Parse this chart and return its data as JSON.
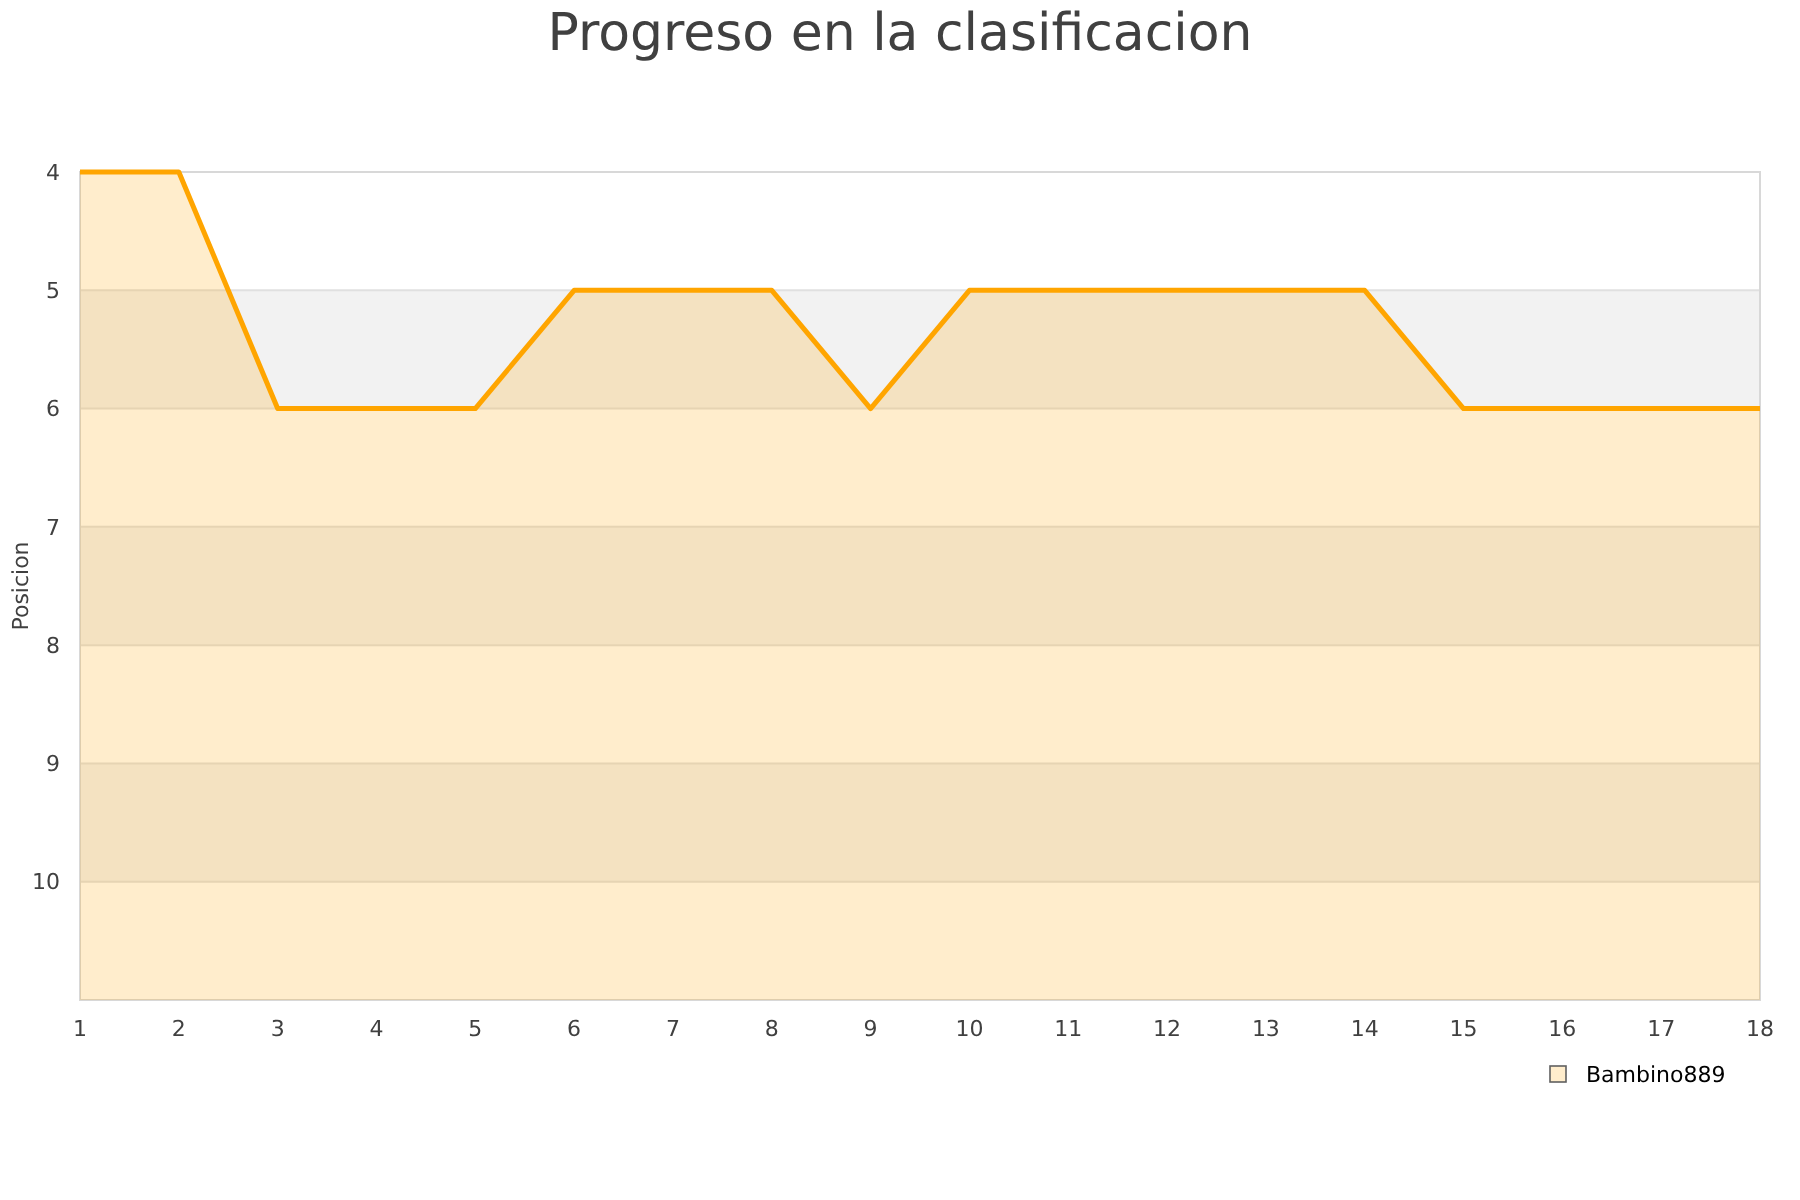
{
  "chart_data": {
    "type": "area",
    "title": "Progreso en la clasificacion",
    "ylabel": "Posicion",
    "x": [
      1,
      2,
      3,
      4,
      5,
      6,
      7,
      8,
      9,
      10,
      11,
      12,
      13,
      14,
      15,
      16,
      17,
      18
    ],
    "series": [
      {
        "name": "Bambino889",
        "color": "#ffa500",
        "values": [
          4,
          4,
          6,
          6,
          6,
          5,
          5,
          5,
          6,
          5,
          5,
          5,
          5,
          5,
          6,
          6,
          6,
          6
        ]
      }
    ],
    "xlim": [
      1,
      18
    ],
    "xticks": [
      1,
      2,
      3,
      4,
      5,
      6,
      7,
      8,
      9,
      10,
      11,
      12,
      13,
      14,
      15,
      16,
      17,
      18
    ],
    "ylim": [
      11,
      4
    ],
    "yticks": [
      4,
      5,
      6,
      7,
      8,
      9,
      10
    ],
    "grid": "y",
    "legend": "bottom right"
  }
}
